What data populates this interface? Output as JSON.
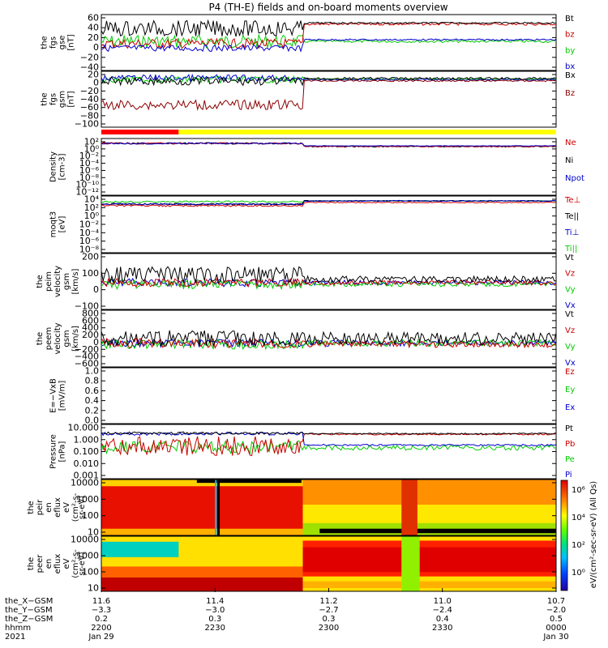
{
  "title": "P4 (TH-E) fields and on-board moments overview",
  "panels": [
    {
      "id": "fgs-gse",
      "ylabel": [
        "the",
        "fgs",
        "gse",
        "[nT]"
      ],
      "ticks": [
        "60",
        "40",
        "20",
        "0",
        "−20",
        "−40"
      ],
      "legend": [
        {
          "t": "Bt",
          "c": "#000000"
        },
        {
          "t": "bz",
          "c": "#cc0000"
        },
        {
          "t": "by",
          "c": "#00cc00"
        },
        {
          "t": "bx",
          "c": "#0000cc"
        }
      ]
    },
    {
      "id": "fgs-gsm",
      "ylabel": [
        "the",
        "fgs",
        "gsm",
        "[nT]"
      ],
      "ticks": [
        "20",
        "0",
        "−20",
        "−40",
        "−60",
        "−80",
        "−100"
      ],
      "legend": [
        {
          "t": "Bx",
          "c": "#000000"
        },
        {
          "t": "Bz",
          "c": "#8b0000"
        }
      ]
    },
    {
      "id": "density",
      "ylabel": [
        "Density",
        "[cm-3]"
      ],
      "ticks": [
        "10²",
        "10⁰",
        "10⁻²",
        "10⁻⁴",
        "10⁻⁶",
        "10⁻⁸",
        "10⁻¹⁰",
        "10⁻¹²"
      ],
      "legend": [
        {
          "t": "Ne",
          "c": "#cc0000"
        },
        {
          "t": "Ni",
          "c": "#000000"
        },
        {
          "t": "Npot",
          "c": "#0000cc"
        }
      ]
    },
    {
      "id": "temperature",
      "ylabel": [
        "moqt3",
        "[eV]"
      ],
      "ticks": [
        "10⁴",
        "10²",
        "10⁰",
        "10⁻²",
        "10⁻⁴",
        "10⁻⁶",
        "10⁻⁸"
      ],
      "legend": [
        {
          "t": "Te⊥",
          "c": "#cc0000"
        },
        {
          "t": "Te||",
          "c": "#000000"
        },
        {
          "t": "Ti⊥",
          "c": "#0000cc"
        },
        {
          "t": "Ti||",
          "c": "#00cc00"
        }
      ]
    },
    {
      "id": "peim-velocity",
      "ylabel": [
        "the",
        "peim",
        "velocity",
        "gsm",
        "[km/s]"
      ],
      "ticks": [
        "200",
        "100",
        "0",
        "−100"
      ],
      "legend": [
        {
          "t": "Vt",
          "c": "#000000"
        },
        {
          "t": "Vz",
          "c": "#cc0000"
        },
        {
          "t": "Vy",
          "c": "#00cc00"
        },
        {
          "t": "Vx",
          "c": "#0000cc"
        }
      ]
    },
    {
      "id": "peem-velocity",
      "ylabel": [
        "the",
        "peem",
        "velocity",
        "gsm",
        "[km/s]"
      ],
      "ticks": [
        "800",
        "600",
        "400",
        "200",
        "0",
        "−200",
        "−400",
        "−600"
      ],
      "legend": [
        {
          "t": "Vt",
          "c": "#000000"
        },
        {
          "t": "Vz",
          "c": "#cc0000"
        },
        {
          "t": "Vy",
          "c": "#00cc00"
        },
        {
          "t": "Vx",
          "c": "#0000cc"
        }
      ]
    },
    {
      "id": "efield",
      "ylabel": [
        "E=−VxB",
        "[mV/m]"
      ],
      "ticks": [
        "1.0",
        "0.8",
        "0.6",
        "0.4",
        "0.2",
        "0.0"
      ],
      "legend": [
        {
          "t": "Ez",
          "c": "#cc0000"
        },
        {
          "t": "Ey",
          "c": "#00cc00"
        },
        {
          "t": "Ex",
          "c": "#0000cc"
        }
      ]
    },
    {
      "id": "pressure",
      "ylabel": [
        "Pressure",
        "[nPa]"
      ],
      "ticks": [
        "10.000",
        "1.000",
        "0.100",
        "0.010",
        "0.001"
      ],
      "legend": [
        {
          "t": "Pt",
          "c": "#000000"
        },
        {
          "t": "Pb",
          "c": "#cc0000"
        },
        {
          "t": "Pe",
          "c": "#00cc00"
        },
        {
          "t": "Pi",
          "c": "#0000cc"
        }
      ]
    },
    {
      "id": "peir-eflux",
      "ylabel": [
        "the",
        "peir",
        "en",
        "eflux",
        "eV",
        "(cm²-s-",
        "sr-eV)"
      ],
      "ticks": [
        "10000",
        "1000",
        "100",
        "10"
      ],
      "legend": []
    },
    {
      "id": "peer-eflux",
      "ylabel": [
        "the",
        "peer",
        "en",
        "eflux",
        "eV",
        "(cm²-s-",
        "sr-eV)"
      ],
      "ticks": [
        "10000",
        "1000",
        "100",
        "10"
      ],
      "legend": []
    }
  ],
  "colorbar": {
    "ticks": [
      "10⁶",
      "10⁴",
      "10²",
      "10⁰"
    ],
    "label": "eV/(cm²-sec-sr-eV)  (All Qs)"
  },
  "xaxis": {
    "rows": [
      {
        "label": "the_X−GSM",
        "vals": [
          "11.6",
          "11.4",
          "11.2",
          "11.0",
          "10.7"
        ]
      },
      {
        "label": "the_Y−GSM",
        "vals": [
          "−3.3",
          "−3.0",
          "−2.7",
          "−2.4",
          "−2.0"
        ]
      },
      {
        "label": "the_Z−GSM",
        "vals": [
          "0.2",
          "0.3",
          "0.3",
          "0.4",
          "0.5"
        ]
      },
      {
        "label": "hhmm",
        "vals": [
          "2200",
          "2230",
          "2300",
          "2330",
          "0000"
        ]
      },
      {
        "label": "2021",
        "vals": [
          "Jan 29",
          "",
          "",
          "",
          "Jan 30"
        ]
      }
    ]
  },
  "chart_data": {
    "type": "line",
    "title": "P4 (TH-E) fields and on-board moments overview",
    "x_time_hhmm": [
      "2200",
      "2230",
      "2300",
      "2330",
      "0000"
    ],
    "series_summary": [
      {
        "panel": "fgs-gse",
        "name": "Bt",
        "before_2245": 40,
        "after_2245": 45
      },
      {
        "panel": "fgs-gse",
        "name": "bz",
        "before_2245": 0,
        "after_2245": 45
      },
      {
        "panel": "fgs-gse",
        "name": "by",
        "before_2245": -10,
        "after_2245": 0
      },
      {
        "panel": "fgs-gse",
        "name": "bx",
        "before_2245": -5,
        "after_2245": 8
      },
      {
        "panel": "fgs-gsm",
        "name": "Bx",
        "before_2245": 0,
        "after_2245": 5
      },
      {
        "panel": "fgs-gsm",
        "name": "Bz",
        "before_2245": -75,
        "after_2245": 5
      },
      {
        "panel": "pressure",
        "name": "Pt",
        "before_2245": 1.0,
        "after_2245": 1.0
      },
      {
        "panel": "pressure",
        "name": "Pb",
        "before_2245": 0.4,
        "after_2245": 1.0
      },
      {
        "panel": "pressure",
        "name": "Pe",
        "before_2245": 0.2,
        "after_2245": 0.12
      },
      {
        "panel": "pressure",
        "name": "Pi",
        "before_2245": 1.0,
        "after_2245": 0.3
      }
    ]
  }
}
